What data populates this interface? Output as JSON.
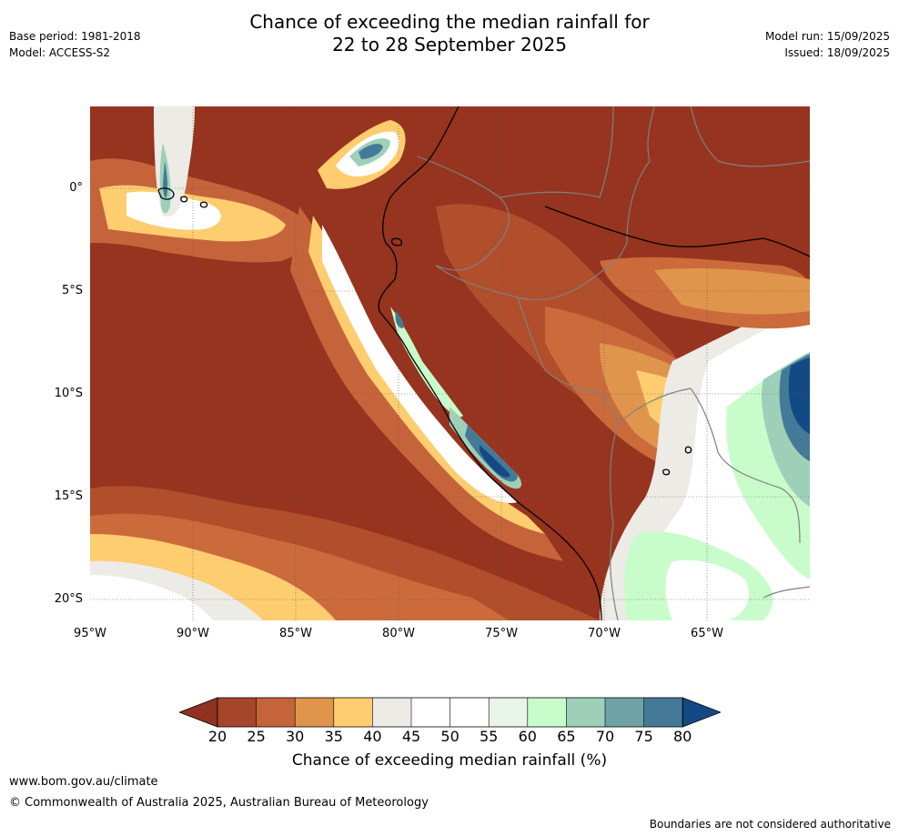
{
  "header": {
    "title_line1": "Chance of exceeding the median rainfall for",
    "title_line2": "22 to 28 September 2025",
    "base_period": "Base period: 1981-2018",
    "model": "Model: ACCESS-S2",
    "model_run": "Model run: 15/09/2025",
    "issued": "Issued: 18/09/2025"
  },
  "map": {
    "region": "Western South America and eastern Pacific",
    "lat_labels": [
      "0°",
      "5°S",
      "10°S",
      "15°S",
      "20°S"
    ],
    "lon_labels": [
      "95°W",
      "90°W",
      "85°W",
      "80°W",
      "75°W",
      "70°W",
      "65°W"
    ]
  },
  "legend": {
    "label": "Chance of exceeding median rainfall (%)",
    "ticks": [
      "20",
      "25",
      "30",
      "35",
      "40",
      "45",
      "50",
      "55",
      "60",
      "65",
      "70",
      "75",
      "80"
    ],
    "colors": [
      "#a5462a",
      "#c5643a",
      "#e0954d",
      "#fecd6f",
      "#edebe6",
      "#ffffff",
      "#ffffff",
      "#e9f4e9",
      "#c9fccb",
      "#9ed0b9",
      "#6fa3a7",
      "#447a98"
    ],
    "under_color": "#8f3220",
    "over_color": "#134a85"
  },
  "footer": {
    "url": "www.bom.gov.au/climate",
    "copyright": "© Commonwealth of Australia 2025, Australian Bureau of Meteorology",
    "note": "Boundaries are not considered authoritative"
  }
}
